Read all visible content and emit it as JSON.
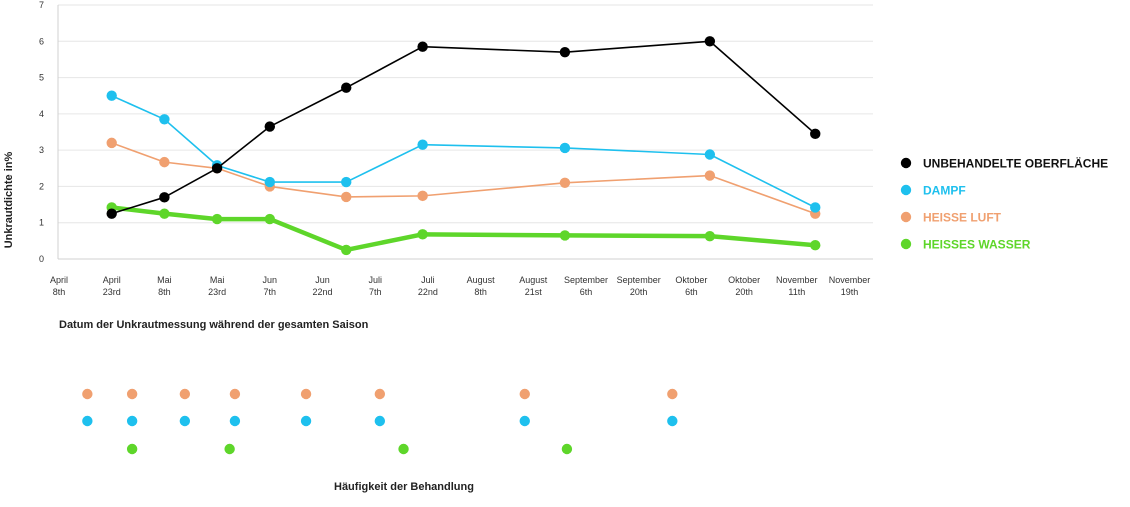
{
  "chart_data": {
    "type": "line",
    "ylabel": "Unkrautdichte in%",
    "xlabel": "Datum der Unkrautmessung während der gesamten Saison",
    "ylim": [
      0,
      7
    ],
    "yticks": [
      0,
      1,
      2,
      3,
      4,
      5,
      6,
      7
    ],
    "grid": "horizontal",
    "legend_position": "right",
    "x_categories": [
      {
        "line1": "April",
        "line2": "8th"
      },
      {
        "line1": "April",
        "line2": "23rd"
      },
      {
        "line1": "Mai",
        "line2": "8th"
      },
      {
        "line1": "Mai",
        "line2": "23rd"
      },
      {
        "line1": "Jun",
        "line2": "7th"
      },
      {
        "line1": "Jun",
        "line2": "22nd"
      },
      {
        "line1": "Juli",
        "line2": "7th"
      },
      {
        "line1": "Juli",
        "line2": "22nd"
      },
      {
        "line1": "August",
        "line2": "8th"
      },
      {
        "line1": "August",
        "line2": "21st"
      },
      {
        "line1": "September",
        "line2": "6th"
      },
      {
        "line1": "September",
        "line2": "20th"
      },
      {
        "line1": "Oktober",
        "line2": "6th"
      },
      {
        "line1": "Oktober",
        "line2": "20th"
      },
      {
        "line1": "November",
        "line2": "11th"
      },
      {
        "line1": "November",
        "line2": "19th"
      }
    ],
    "series": [
      {
        "name": "UNBEHANDELTE OBERFLÄCHE",
        "color": "#000000",
        "points": [
          [
            1,
            1.25
          ],
          [
            2,
            1.7
          ],
          [
            3,
            2.5
          ],
          [
            4,
            3.65
          ],
          [
            5.45,
            4.72
          ],
          [
            6.9,
            5.85
          ],
          [
            9.6,
            5.7
          ],
          [
            12.35,
            6.0
          ],
          [
            14.35,
            3.45
          ]
        ]
      },
      {
        "name": "DAMPF",
        "color": "#1ec0ee",
        "points": [
          [
            1,
            4.5
          ],
          [
            2,
            3.85
          ],
          [
            3,
            2.58
          ],
          [
            4,
            2.12
          ],
          [
            5.45,
            2.12
          ],
          [
            6.9,
            3.15
          ],
          [
            9.6,
            3.06
          ],
          [
            12.35,
            2.88
          ],
          [
            14.35,
            1.42
          ]
        ]
      },
      {
        "name": "HEISSE LUFT",
        "color": "#f0a070",
        "points": [
          [
            1,
            3.2
          ],
          [
            2,
            2.67
          ],
          [
            3,
            2.5
          ],
          [
            4,
            2.0
          ],
          [
            5.45,
            1.71
          ],
          [
            6.9,
            1.74
          ],
          [
            9.6,
            2.1
          ],
          [
            12.35,
            2.3
          ],
          [
            14.35,
            1.25
          ]
        ]
      },
      {
        "name": "HEISSES WASSER",
        "color": "#5ed62a",
        "points": [
          [
            1,
            1.42
          ],
          [
            2,
            1.25
          ],
          [
            3,
            1.1
          ],
          [
            4,
            1.1
          ],
          [
            5.45,
            0.25
          ],
          [
            6.9,
            0.68
          ],
          [
            9.6,
            0.65
          ],
          [
            12.35,
            0.63
          ],
          [
            14.35,
            0.38
          ]
        ]
      }
    ]
  },
  "treatment_frequency": {
    "title": "Häufigkeit der Behandlung",
    "rows": [
      {
        "treatment": "HEISSE LUFT",
        "color": "#f0a070",
        "x": [
          0.5,
          1.35,
          2.35,
          3.3,
          4.65,
          6.05,
          8.8,
          11.6
        ]
      },
      {
        "treatment": "DAMPF",
        "color": "#1ec0ee",
        "x": [
          0.5,
          1.35,
          2.35,
          3.3,
          4.65,
          6.05,
          8.8,
          11.6
        ]
      },
      {
        "treatment": "HEISSES WASSER",
        "color": "#5ed62a",
        "x": [
          1.35,
          3.2,
          6.5,
          9.6
        ]
      }
    ]
  }
}
